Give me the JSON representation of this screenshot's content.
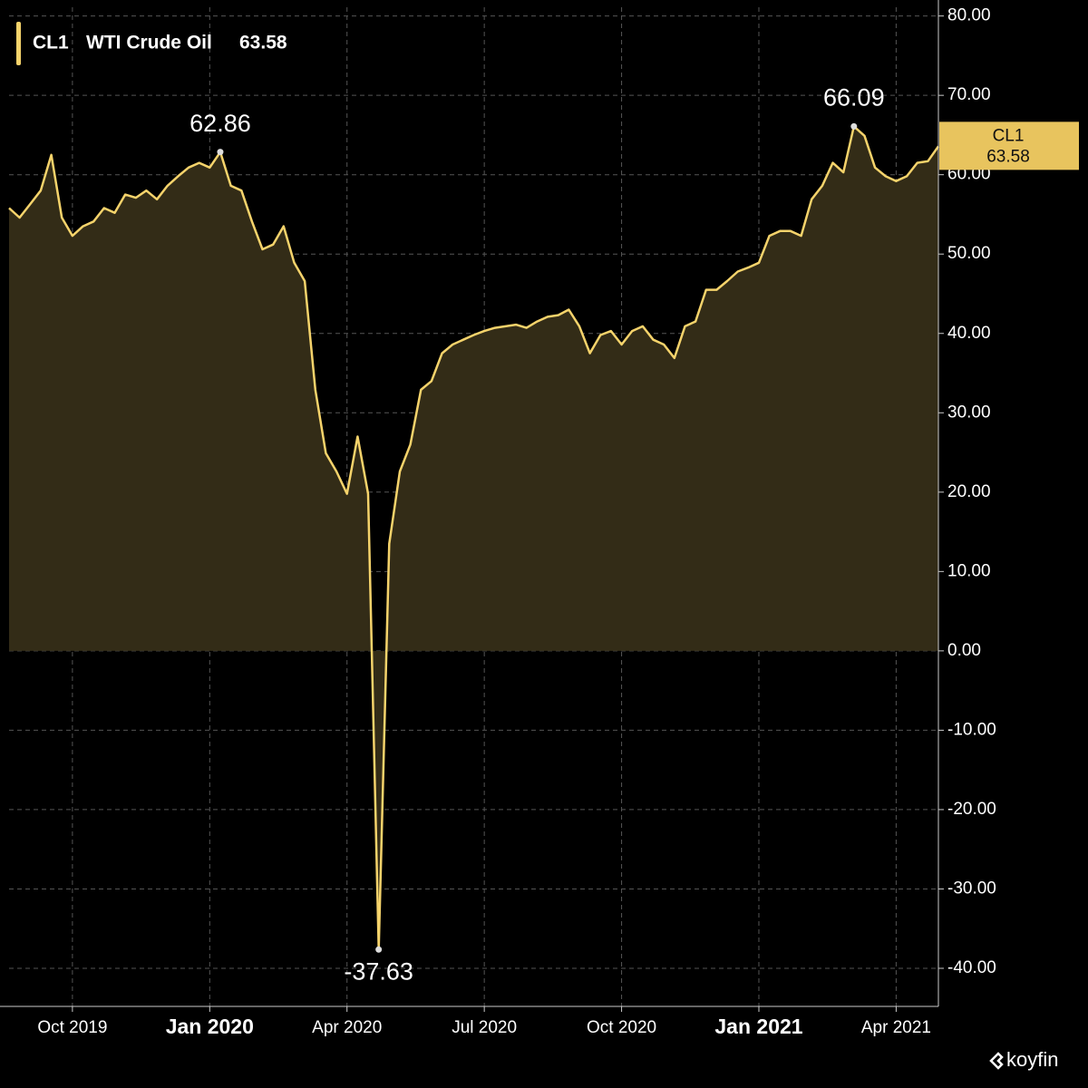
{
  "chart_data": {
    "type": "area",
    "header": {
      "ticker": "CL1",
      "name": "WTI Crude Oil"
    },
    "watermark": "koyfin",
    "categories": [
      null,
      null,
      null,
      null,
      null,
      null,
      "Oct 2019",
      null,
      null,
      null,
      null,
      null,
      null,
      null,
      null,
      null,
      null,
      null,
      null,
      "Jan 2020",
      null,
      null,
      null,
      null,
      null,
      null,
      null,
      null,
      null,
      null,
      null,
      null,
      "Apr 2020",
      null,
      null,
      null,
      null,
      null,
      null,
      null,
      null,
      null,
      null,
      null,
      null,
      "Jul 2020",
      null,
      null,
      null,
      null,
      null,
      null,
      null,
      null,
      null,
      null,
      null,
      null,
      "Oct 2020",
      null,
      null,
      null,
      null,
      null,
      null,
      null,
      null,
      null,
      null,
      null,
      null,
      "Jan 2021",
      null,
      null,
      null,
      null,
      null,
      null,
      null,
      null,
      null,
      null,
      null,
      null,
      "Apr 2021",
      null,
      null,
      null,
      null
    ],
    "series": [
      {
        "name": "CL1",
        "color": "#f5d36b",
        "fill": "#332c17",
        "values": [
          55.8,
          54.6,
          56.3,
          58,
          62.5,
          54.6,
          52.3,
          53.5,
          54.1,
          55.8,
          55.2,
          57.5,
          57.1,
          58,
          56.9,
          58.6,
          59.8,
          60.9,
          61.5,
          60.9,
          62.86,
          58.6,
          58,
          54.1,
          50.6,
          51.2,
          53.5,
          48.9,
          46.6,
          32.9,
          24.9,
          22.6,
          19.8,
          27,
          19.8,
          -37.63,
          13.5,
          22.6,
          26,
          32.9,
          34,
          37.5,
          38.6,
          39.2,
          39.8,
          40.3,
          40.7,
          40.9,
          41.1,
          40.7,
          41.5,
          42.1,
          42.3,
          43,
          40.9,
          37.5,
          39.8,
          40.3,
          38.6,
          40.3,
          40.9,
          39.2,
          38.6,
          36.9,
          40.9,
          41.5,
          45.5,
          45.5,
          46.6,
          47.8,
          48.3,
          48.9,
          52.3,
          52.9,
          52.9,
          52.3,
          56.9,
          58.6,
          61.5,
          60.3,
          66.09,
          64.9,
          60.9,
          59.8,
          59.2,
          59.8,
          61.5,
          61.7,
          63.58
        ]
      }
    ],
    "annotations": [
      20,
      35,
      80
    ],
    "ylim": [
      -44.8,
      81.1
    ],
    "yticks": [
      {
        "value": 80,
        "label": "80.00"
      },
      {
        "value": 70,
        "label": "70.00"
      },
      {
        "value": 60,
        "label": "60.00"
      },
      {
        "value": 50,
        "label": "50.00"
      },
      {
        "value": 40,
        "label": "40.00"
      },
      {
        "value": 30,
        "label": "30.00"
      },
      {
        "value": 20,
        "label": "20.00"
      },
      {
        "value": 10,
        "label": "10.00"
      },
      {
        "value": 0,
        "label": "0.00"
      },
      {
        "value": -10,
        "label": "-10.00"
      },
      {
        "value": -20,
        "label": "-20.00"
      },
      {
        "value": -30,
        "label": "-30.00"
      },
      {
        "value": -40,
        "label": "-40.00"
      }
    ],
    "grid": true
  }
}
